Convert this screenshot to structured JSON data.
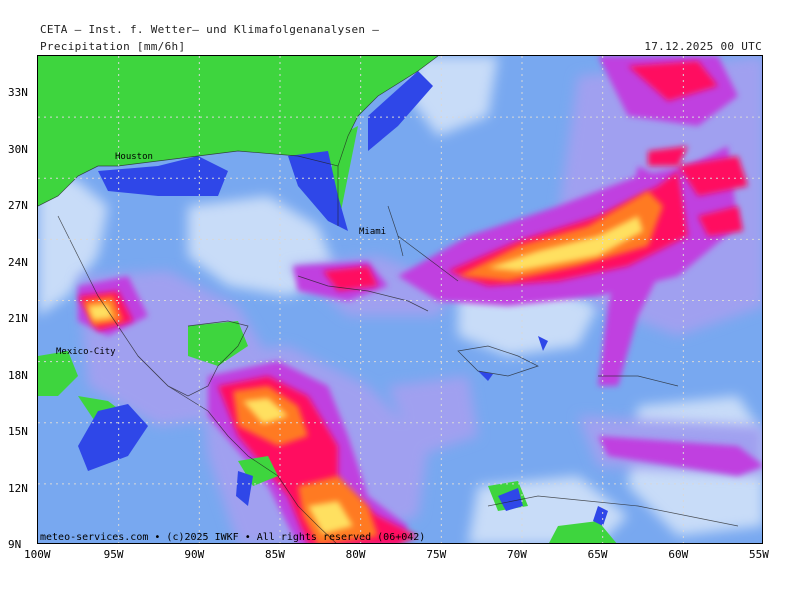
{
  "header": {
    "source": "CETA – Inst. f. Wetter– und Klimafolgenanalysen –",
    "parameter": "Precipitation [mm/6h]",
    "valid_time": "17.12.2025 00 UTC"
  },
  "axes": {
    "lat_labels": [
      "33N",
      "30N",
      "27N",
      "24N",
      "21N",
      "18N",
      "15N",
      "12N",
      "9N"
    ],
    "lon_labels": [
      "100W",
      "95W",
      "90W",
      "85W",
      "80W",
      "75W",
      "70W",
      "65W",
      "60W",
      "55W"
    ]
  },
  "cities": [
    "Houston",
    "Miami",
    "Mexico-City"
  ],
  "credit": "meteo-services.com • (c)2025 IWKF • All rights reserved (06+042)",
  "colors": {
    "land": "#3ed53e",
    "water_deep": "#2f47e8",
    "background_rain": "#78a8f0",
    "light_rain": "#c8dcf8",
    "moderate": "#a0a0f0",
    "heavy": "#c040e0",
    "very_heavy": "#ff1060",
    "intense": "#ff7a20",
    "extreme": "#ffe060"
  }
}
